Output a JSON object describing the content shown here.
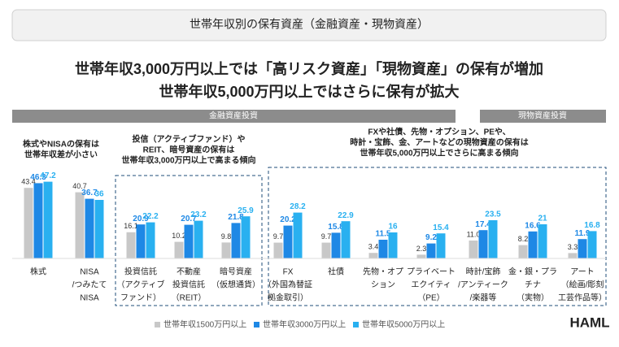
{
  "header": {
    "title": "世帯年収別の保有資産（金融資産・現物資産）"
  },
  "headline": [
    "世帯年収3,000万円以上では「高リスク資産」「現物資産」の保有が増加",
    "世帯年収5,000万円以上ではさらに保有が拡大"
  ],
  "sections": [
    "金融資産投資",
    "現物資産投資"
  ],
  "annotations": [
    [
      "株式やNISAの保有は",
      "世帯年収差が小さい"
    ],
    [
      "投信（アクティブファンド）や",
      "REIT、暗号資産の保有は",
      "世帯年収3,000万円以上で高まる傾向"
    ],
    [
      "FXや社債、先物・オプション、PEや、",
      "時計・宝飾、金、アートなどの現物資産の保有は",
      "世帯年収5,000万円以上でさらに高まる傾向"
    ]
  ],
  "logo": "HAML",
  "chart_data": {
    "type": "bar",
    "categories": [
      [
        "株式"
      ],
      [
        "NISA",
        "/つみたて",
        "NISA"
      ],
      [
        "投資信託",
        "（アクティブ",
        "ファンド）"
      ],
      [
        "不動産",
        "投資信託",
        "（REIT）"
      ],
      [
        "暗号資産",
        "（仮想通貨）"
      ],
      [
        "FX",
        "（外国為替証",
        "拠金取引）"
      ],
      [
        "社債"
      ],
      [
        "先物・オプ",
        "ション"
      ],
      [
        "プライベート",
        "エクイティ",
        "（PE）"
      ],
      [
        "時計/宝飾",
        "/アンティーク",
        "/楽器等"
      ],
      [
        "金・銀・プラ",
        "チナ",
        "（実物）"
      ],
      [
        "アート",
        "（絵画/彫刻",
        "工芸作品等）"
      ]
    ],
    "series": [
      {
        "name": "世帯年収1500万円以上",
        "color": "#c8c8c8",
        "values": [
          43.4,
          40.7,
          16.1,
          10.2,
          9.8,
          9.7,
          9.7,
          3.4,
          2.3,
          11.0,
          8.2,
          3.3
        ],
        "value_labels": [
          "43.4",
          "40.7",
          "16.1",
          "10.2",
          "9.8",
          "9.7",
          "9.7",
          "3.4",
          "2.3",
          "11.0",
          "8.2",
          "3.3"
        ]
      },
      {
        "name": "世帯年収3000万円以上",
        "color": "#1e88e5",
        "values": [
          46.3,
          36.7,
          20.9,
          20.7,
          21.8,
          20.2,
          15.8,
          11.5,
          9.2,
          17.4,
          16.6,
          11.9
        ]
      },
      {
        "name": "世帯年収5000万円以上",
        "color": "#29b0f0",
        "values": [
          47.2,
          36.0,
          22.2,
          23.2,
          25.9,
          28.2,
          22.9,
          16.0,
          15.4,
          23.5,
          21.0,
          16.8
        ]
      }
    ]
  }
}
